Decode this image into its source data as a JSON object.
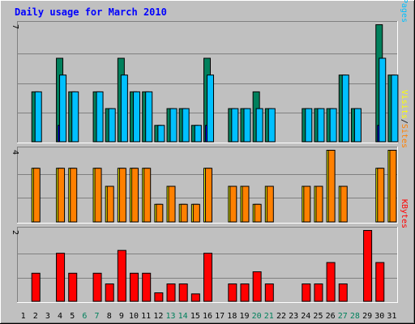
{
  "chart_data": {
    "type": "bar",
    "title": "Daily usage for March 2010",
    "days": [
      "1",
      "2",
      "3",
      "4",
      "5",
      "6",
      "7",
      "8",
      "9",
      "10",
      "11",
      "12",
      "13",
      "14",
      "15",
      "16",
      "17",
      "18",
      "19",
      "20",
      "21",
      "22",
      "23",
      "24",
      "25",
      "26",
      "27",
      "28",
      "29",
      "30",
      "31"
    ],
    "weekend_days": [
      "6",
      "7",
      "13",
      "14",
      "20",
      "21",
      "27",
      "28"
    ],
    "panels": [
      {
        "id": "hits-files-pages",
        "ymax_label": "7",
        "ymax": 7,
        "labels": [
          {
            "text": "Hits",
            "color": "#00805c"
          },
          {
            "text": "/",
            "color": "#000000"
          },
          {
            "text": "Files",
            "color": "#0000ff"
          },
          {
            "text": "/",
            "color": "#000000"
          },
          {
            "text": "Pages",
            "color": "#00c0ff"
          }
        ],
        "series": [
          {
            "name": "Hits",
            "color": "#00805c",
            "values": [
              0,
              3,
              0,
              5,
              3,
              0,
              3,
              2,
              5,
              3,
              3,
              1,
              2,
              2,
              1,
              5,
              0,
              2,
              2,
              3,
              2,
              0,
              0,
              2,
              2,
              2,
              4,
              2,
              0,
              7,
              4
            ]
          },
          {
            "name": "Files",
            "color": "#0000ff",
            "values": [
              0,
              0,
              0,
              1,
              0,
              0,
              0,
              0,
              0,
              0,
              0,
              0,
              0,
              0,
              0,
              1,
              0,
              0,
              0,
              0,
              0,
              0,
              0,
              0,
              0,
              0,
              0,
              0,
              0,
              1,
              0
            ]
          },
          {
            "name": "Pages",
            "color": "#00c0ff",
            "values": [
              0,
              3,
              0,
              4,
              3,
              0,
              3,
              2,
              4,
              3,
              3,
              1,
              2,
              2,
              1,
              4,
              0,
              2,
              2,
              2,
              2,
              0,
              0,
              2,
              2,
              2,
              4,
              2,
              0,
              5,
              4
            ]
          }
        ]
      },
      {
        "id": "visits-sites",
        "ymax_label": "4",
        "ymax": 4,
        "labels": [
          {
            "text": "Visits",
            "color": "#ffff00"
          },
          {
            "text": "/",
            "color": "#000000"
          },
          {
            "text": "Sites",
            "color": "#ff8000"
          }
        ],
        "series": [
          {
            "name": "Visits",
            "color": "#ffff00",
            "values": [
              0,
              3,
              0,
              3,
              3,
              0,
              3,
              2,
              3,
              3,
              3,
              1,
              2,
              1,
              1,
              3,
              0,
              2,
              2,
              1,
              2,
              0,
              0,
              2,
              2,
              4,
              2,
              0,
              0,
              3,
              4
            ]
          },
          {
            "name": "Sites",
            "color": "#ff8000",
            "values": [
              0,
              3,
              0,
              3,
              3,
              0,
              3,
              2,
              3,
              3,
              3,
              1,
              2,
              1,
              1,
              3,
              0,
              2,
              2,
              1,
              2,
              0,
              0,
              2,
              2,
              4,
              2,
              0,
              0,
              3,
              4
            ]
          }
        ]
      },
      {
        "id": "kbytes",
        "ymax_label": "2",
        "ymax": 2,
        "labels": [
          {
            "text": "KBytes",
            "color": "#ff0000"
          }
        ],
        "series": [
          {
            "name": "KBytes",
            "color": "#ff0000",
            "values": [
              0,
              0.8,
              0,
              1.36,
              0.8,
              0,
              0.8,
              0.5,
              1.44,
              0.8,
              0.8,
              0.25,
              0.5,
              0.5,
              0.22,
              1.36,
              0,
              0.5,
              0.5,
              0.84,
              0.5,
              0,
              0,
              0.5,
              0.5,
              1.1,
              0.5,
              0,
              2.0,
              1.1,
              0
            ]
          }
        ]
      }
    ],
    "grid": true,
    "colors": {
      "background": "#c0c0c0",
      "plot": "#c0c0c0",
      "title": "#0000ff",
      "weekend": "#00805c",
      "weekday": "#000000"
    }
  }
}
